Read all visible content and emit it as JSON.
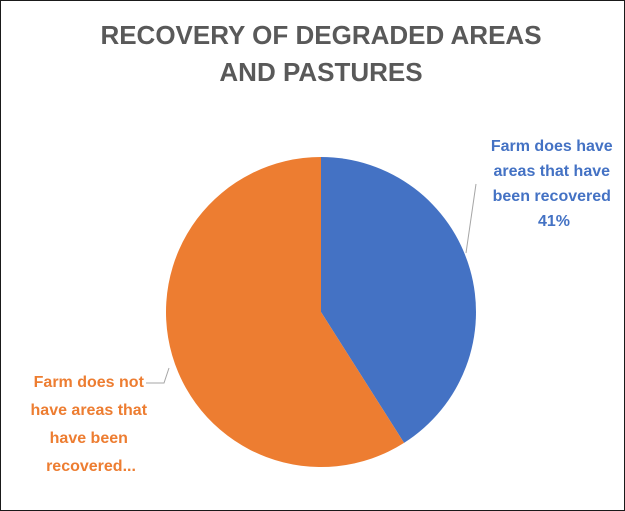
{
  "chart_data": {
    "type": "pie",
    "title_lines": [
      "RECOVERY OF DEGRADED AREAS",
      "AND PASTURES"
    ],
    "slices": [
      {
        "name": "Farm does have areas that have been recovered",
        "value": 41,
        "color": "#4472C4",
        "label_lines": [
          "Farm does have",
          "areas that have",
          "been recovered",
          "41%"
        ]
      },
      {
        "name": "Farm does not have areas that have been recovered",
        "value": 59,
        "color": "#ED7D31",
        "label_lines": [
          "Farm does not",
          "have areas that",
          "have been",
          "recovered..."
        ]
      }
    ]
  }
}
